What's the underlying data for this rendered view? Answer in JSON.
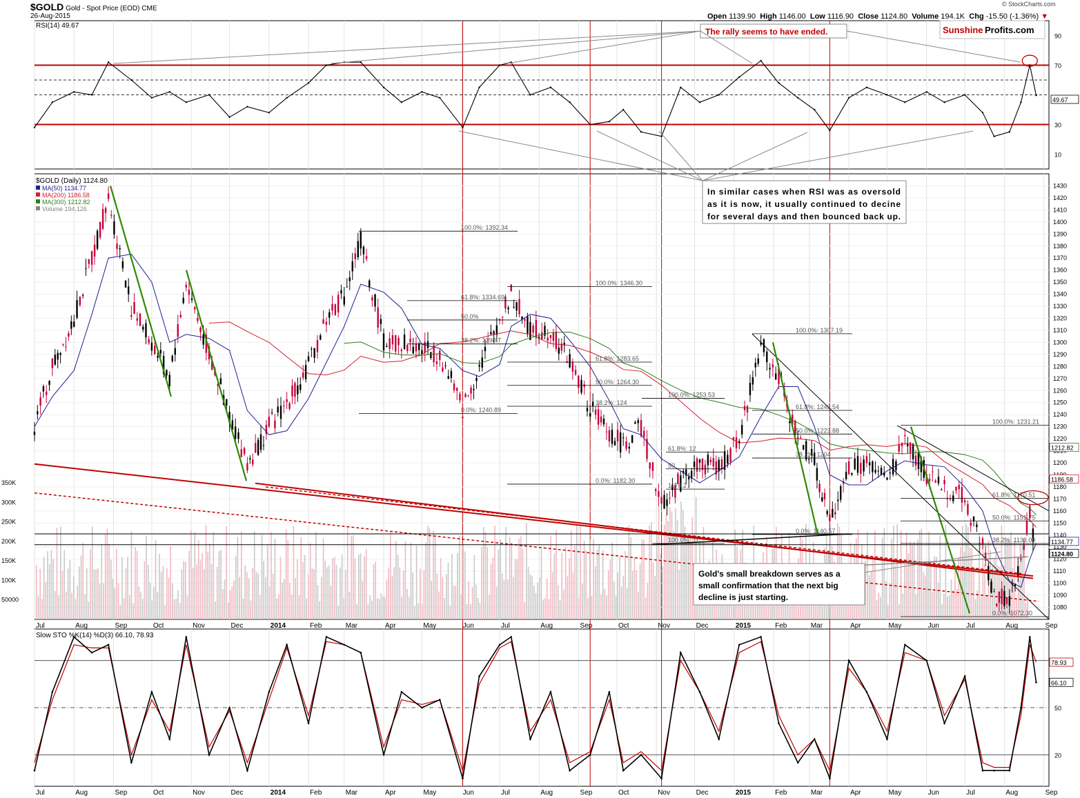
{
  "header": {
    "symbol": "$GOLD",
    "description": "Gold - Spot Price (EOD) CME",
    "date": "26-Aug-2015",
    "open_label": "Open",
    "open": "1139.90",
    "high_label": "High",
    "high": "1146.00",
    "low_label": "Low",
    "low": "1116.90",
    "close_label": "Close",
    "close": "1124.80",
    "volume_label": "Volume",
    "volume": "194.1K",
    "chg_label": "Chg",
    "chg": "-15.50 (-1.36%)",
    "copyright": "© StockCharts.com"
  },
  "logo": {
    "part1": "Sunshine",
    "part2": "Profits.com"
  },
  "colors": {
    "red": "#c00000",
    "green": "#2d8a00",
    "blue": "#1f1f8f",
    "ma200": "#d02030",
    "ma300": "#2e7d1e",
    "upbar": "#000000",
    "downbar": "#c8003a"
  },
  "chart_data": [
    {
      "panel": "rsi",
      "type": "line",
      "title": "RSI(14) 49.67",
      "ylim": [
        0,
        100
      ],
      "yticks": [
        10,
        30,
        70,
        90
      ],
      "reference_lines": [
        30,
        70
      ],
      "current_value_label": "49.67",
      "x": [
        "2013-07-01",
        "2013-07-15",
        "2013-08-01",
        "2013-08-15",
        "2013-08-28",
        "2013-09-15",
        "2013-10-01",
        "2013-10-15",
        "2013-10-28",
        "2013-11-15",
        "2013-12-01",
        "2013-12-15",
        "2014-01-01",
        "2014-01-15",
        "2014-02-01",
        "2014-02-15",
        "2014-03-01",
        "2014-03-14",
        "2014-04-01",
        "2014-04-15",
        "2014-05-01",
        "2014-05-15",
        "2014-06-02",
        "2014-06-15",
        "2014-07-01",
        "2014-07-10",
        "2014-07-25",
        "2014-08-10",
        "2014-08-25",
        "2014-09-10",
        "2014-09-25",
        "2014-10-06",
        "2014-10-20",
        "2014-11-05",
        "2014-11-20",
        "2014-12-05",
        "2014-12-20",
        "2015-01-05",
        "2015-01-22",
        "2015-02-05",
        "2015-02-20",
        "2015-03-05",
        "2015-03-17",
        "2015-04-01",
        "2015-04-15",
        "2015-05-01",
        "2015-05-15",
        "2015-06-01",
        "2015-06-15",
        "2015-07-01",
        "2015-07-15",
        "2015-07-24",
        "2015-08-05",
        "2015-08-14",
        "2015-08-21",
        "2015-08-26"
      ],
      "values": [
        28,
        45,
        52,
        50,
        72,
        60,
        48,
        52,
        45,
        50,
        35,
        42,
        38,
        48,
        58,
        70,
        72,
        72,
        55,
        45,
        52,
        48,
        28,
        55,
        70,
        72,
        50,
        55,
        45,
        30,
        32,
        40,
        25,
        22,
        55,
        45,
        50,
        62,
        73,
        58,
        48,
        40,
        26,
        48,
        55,
        50,
        45,
        52,
        45,
        50,
        38,
        22,
        25,
        45,
        70,
        49.67
      ],
      "annotations": [
        {
          "text": "The rally seems to have ended."
        },
        {
          "text": "In similar cases when RSI was as oversold as it is now, it usually continued to decine for several days and then bounced back up."
        }
      ]
    },
    {
      "panel": "price",
      "type": "candlestick",
      "title": "$GOLD (Daily) 1124.80",
      "legend": [
        {
          "name": "MA(50) 1134.77",
          "color": "#1f1f8f"
        },
        {
          "name": "MA(200) 1186.58",
          "color": "#d02030"
        },
        {
          "name": "MA(300) 1212.82",
          "color": "#2e7d1e"
        },
        {
          "name": "Volume 194,126",
          "color": "#888888"
        }
      ],
      "ylim": [
        1070,
        1440
      ],
      "yticks": [
        1080,
        1090,
        1100,
        1110,
        1120,
        1130,
        1140,
        1150,
        1160,
        1170,
        1180,
        1190,
        1200,
        1210,
        1220,
        1230,
        1240,
        1250,
        1260,
        1270,
        1280,
        1290,
        1300,
        1310,
        1320,
        1330,
        1340,
        1350,
        1360,
        1370,
        1380,
        1390,
        1400,
        1410,
        1420,
        1430
      ],
      "right_labels": [
        "1212.82",
        "1186.58",
        "1134.77",
        "1124.80"
      ],
      "volume_ticks": [
        "50000",
        "100K",
        "150K",
        "200K",
        "250K",
        "300K",
        "350K"
      ],
      "x": [
        "2013-07-01",
        "2013-07-15",
        "2013-08-01",
        "2013-08-15",
        "2013-08-28",
        "2013-09-15",
        "2013-10-01",
        "2013-10-15",
        "2013-10-28",
        "2013-11-15",
        "2013-12-01",
        "2013-12-15",
        "2014-01-01",
        "2014-01-15",
        "2014-02-01",
        "2014-02-15",
        "2014-03-01",
        "2014-03-14",
        "2014-04-01",
        "2014-04-15",
        "2014-05-01",
        "2014-05-15",
        "2014-06-02",
        "2014-06-15",
        "2014-07-01",
        "2014-07-10",
        "2014-07-25",
        "2014-08-10",
        "2014-08-25",
        "2014-09-10",
        "2014-09-25",
        "2014-10-06",
        "2014-10-20",
        "2014-11-05",
        "2014-11-20",
        "2014-12-05",
        "2014-12-20",
        "2015-01-05",
        "2015-01-22",
        "2015-02-05",
        "2015-02-20",
        "2015-03-05",
        "2015-03-17",
        "2015-04-01",
        "2015-04-15",
        "2015-05-01",
        "2015-05-15",
        "2015-06-01",
        "2015-06-15",
        "2015-07-01",
        "2015-07-15",
        "2015-07-24",
        "2015-08-05",
        "2015-08-14",
        "2015-08-21",
        "2015-08-26"
      ],
      "close": [
        1230,
        1280,
        1320,
        1370,
        1420,
        1330,
        1300,
        1270,
        1350,
        1290,
        1240,
        1200,
        1230,
        1250,
        1280,
        1320,
        1340,
        1385,
        1300,
        1300,
        1295,
        1290,
        1245,
        1280,
        1320,
        1340,
        1310,
        1310,
        1285,
        1245,
        1225,
        1215,
        1230,
        1165,
        1185,
        1200,
        1195,
        1220,
        1300,
        1270,
        1220,
        1200,
        1150,
        1195,
        1200,
        1185,
        1220,
        1190,
        1180,
        1170,
        1130,
        1090,
        1085,
        1115,
        1160,
        1124.8
      ],
      "fib_labels": [
        "100.0%: 1392.34",
        "100.0%: 1346.30",
        "61.8%: 1334.69",
        "50.0%",
        "38.2%: 1298.7",
        "61.8%: 1283.65",
        "50.0%: 1264.30",
        "38.2%: 124",
        "0.0%: 1240.89",
        "100.0%: 1253.53",
        "0.0%: 1182.30",
        "61.8%: 12",
        "50",
        "1178.2",
        "100.0%: 1307.19",
        "61.8%: 1243.54",
        "50.0%: 1223.88",
        "38.2%: 1204",
        "0.0%: 1140.57",
        "100.0%: 1231.21",
        "61.8%: 1170.51",
        "50.0%: 1151.75",
        "38.2%: 1133.00",
        "0.0%: 1072.30",
        "100.0%: 11"
      ],
      "annotations": [
        {
          "text": "Gold's small breakdown serves as a small confirmation that the next big decline is just starting."
        }
      ]
    },
    {
      "panel": "stochastic",
      "type": "line",
      "title": "Slow STO %K(14) %D(3) 66.10, 78.93",
      "ylim": [
        0,
        100
      ],
      "yticks": [
        20,
        50,
        80
      ],
      "right_labels": [
        "78.93",
        "66.10"
      ],
      "x": [
        "2013-07-01",
        "2013-07-15",
        "2013-08-01",
        "2013-08-15",
        "2013-08-28",
        "2013-09-15",
        "2013-10-01",
        "2013-10-15",
        "2013-10-28",
        "2013-11-15",
        "2013-12-01",
        "2013-12-15",
        "2014-01-01",
        "2014-01-15",
        "2014-02-01",
        "2014-02-15",
        "2014-03-01",
        "2014-03-14",
        "2014-04-01",
        "2014-04-15",
        "2014-05-01",
        "2014-05-15",
        "2014-06-02",
        "2014-06-15",
        "2014-07-01",
        "2014-07-10",
        "2014-07-25",
        "2014-08-10",
        "2014-08-25",
        "2014-09-10",
        "2014-09-25",
        "2014-10-06",
        "2014-10-20",
        "2014-11-05",
        "2014-11-20",
        "2014-12-05",
        "2014-12-20",
        "2015-01-05",
        "2015-01-22",
        "2015-02-05",
        "2015-02-20",
        "2015-03-05",
        "2015-03-17",
        "2015-04-01",
        "2015-04-15",
        "2015-05-01",
        "2015-05-15",
        "2015-06-01",
        "2015-06-15",
        "2015-07-01",
        "2015-07-15",
        "2015-07-24",
        "2015-08-05",
        "2015-08-14",
        "2015-08-21",
        "2015-08-26"
      ],
      "k": [
        10,
        60,
        95,
        85,
        90,
        15,
        60,
        30,
        95,
        20,
        50,
        10,
        60,
        90,
        40,
        95,
        90,
        85,
        20,
        60,
        50,
        55,
        5,
        70,
        90,
        95,
        30,
        60,
        10,
        20,
        60,
        10,
        20,
        5,
        85,
        60,
        30,
        90,
        95,
        40,
        15,
        30,
        5,
        80,
        60,
        30,
        90,
        80,
        40,
        70,
        10,
        10,
        10,
        50,
        95,
        66.1
      ],
      "d": [
        15,
        55,
        90,
        88,
        88,
        20,
        55,
        35,
        90,
        25,
        48,
        15,
        55,
        88,
        45,
        92,
        90,
        85,
        25,
        55,
        52,
        55,
        10,
        65,
        88,
        92,
        35,
        55,
        15,
        22,
        55,
        15,
        22,
        10,
        80,
        60,
        35,
        85,
        92,
        45,
        20,
        30,
        10,
        75,
        60,
        35,
        85,
        80,
        45,
        68,
        15,
        12,
        12,
        45,
        90,
        78.93
      ]
    }
  ],
  "x_axis": {
    "labels": [
      {
        "text": "Jul",
        "date": "2013-07-01"
      },
      {
        "text": "Aug",
        "date": "2013-08-01"
      },
      {
        "text": "Sep",
        "date": "2013-09-01"
      },
      {
        "text": "Oct",
        "date": "2013-10-01"
      },
      {
        "text": "Nov",
        "date": "2013-11-01"
      },
      {
        "text": "Dec",
        "date": "2013-12-01"
      },
      {
        "text": "2014",
        "date": "2014-01-01",
        "bold": true
      },
      {
        "text": "Feb",
        "date": "2014-02-01"
      },
      {
        "text": "Mar",
        "date": "2014-03-01"
      },
      {
        "text": "Apr",
        "date": "2014-04-01"
      },
      {
        "text": "May",
        "date": "2014-05-01"
      },
      {
        "text": "Jun",
        "date": "2014-06-01"
      },
      {
        "text": "Jul",
        "date": "2014-07-01"
      },
      {
        "text": "Aug",
        "date": "2014-08-01"
      },
      {
        "text": "Sep",
        "date": "2014-09-01"
      },
      {
        "text": "Oct",
        "date": "2014-10-01"
      },
      {
        "text": "Nov",
        "date": "2014-11-01"
      },
      {
        "text": "Dec",
        "date": "2014-12-01"
      },
      {
        "text": "2015",
        "date": "2015-01-01",
        "bold": true
      },
      {
        "text": "Feb",
        "date": "2015-02-01"
      },
      {
        "text": "Mar",
        "date": "2015-03-01"
      },
      {
        "text": "Apr",
        "date": "2015-04-01"
      },
      {
        "text": "May",
        "date": "2015-05-01"
      },
      {
        "text": "Jun",
        "date": "2015-06-01"
      },
      {
        "text": "Jul",
        "date": "2015-07-01"
      },
      {
        "text": "Aug",
        "date": "2015-08-01"
      },
      {
        "text": "Sep",
        "date": "2015-09-01"
      }
    ]
  }
}
